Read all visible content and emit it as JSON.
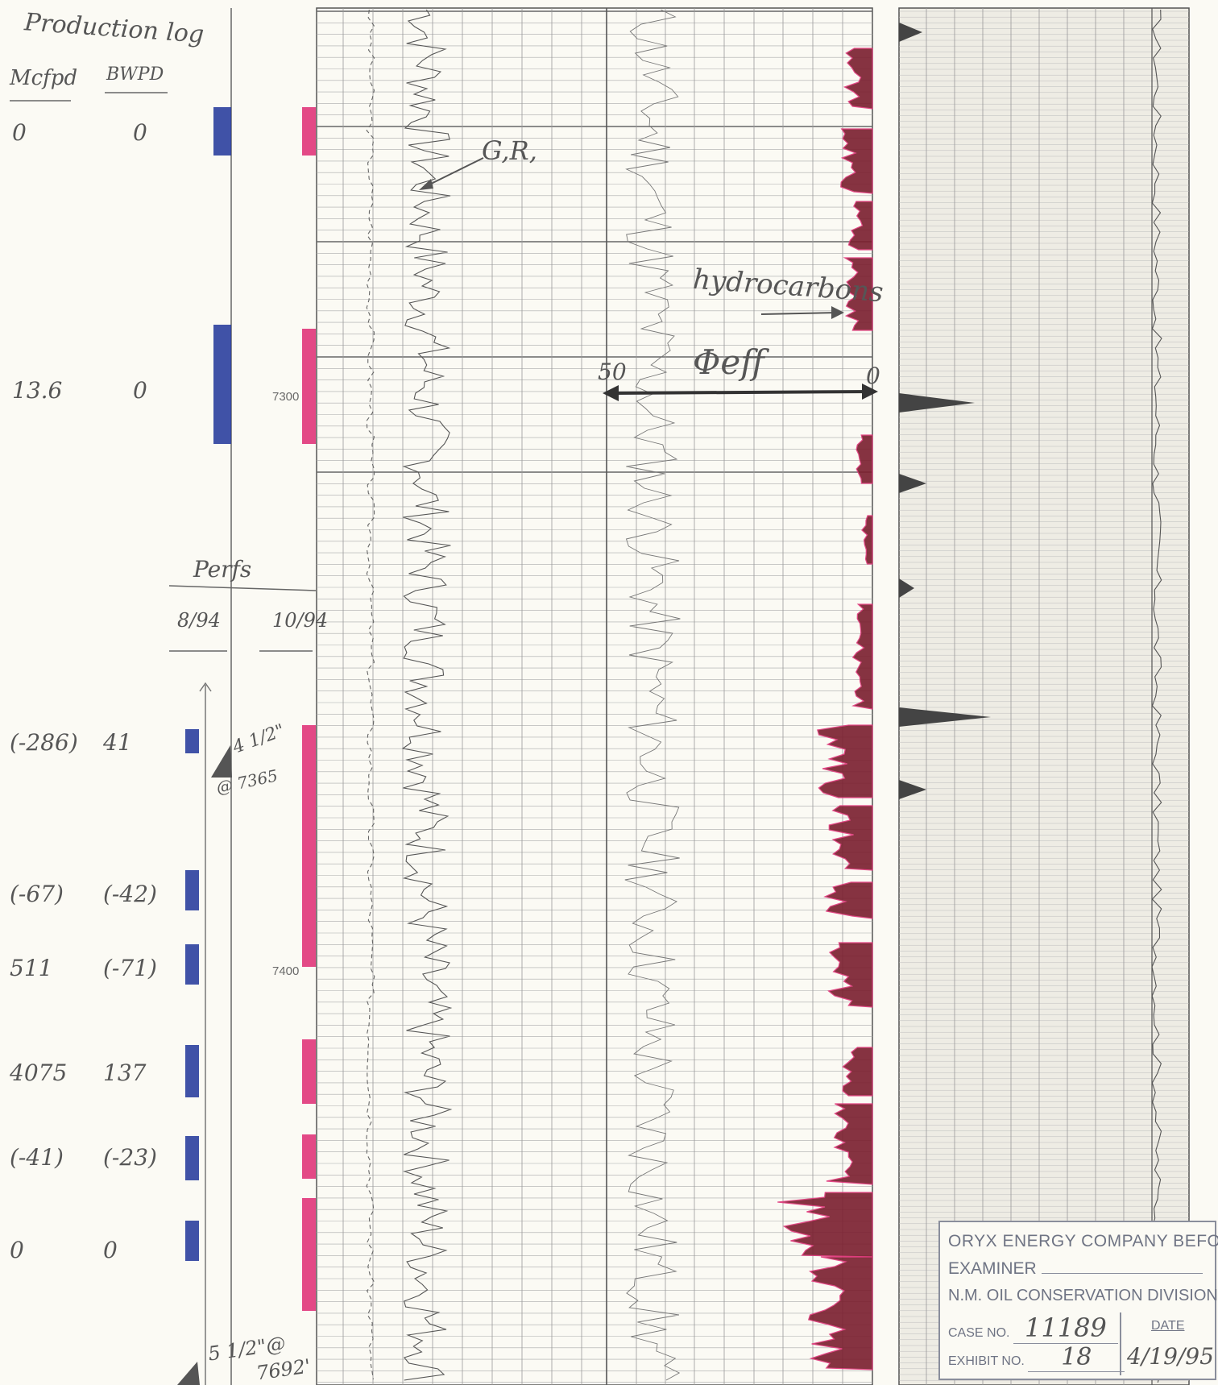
{
  "header": {
    "title": "Production log",
    "col_mcfpd": "Mcfpd",
    "col_bwpd": "BWPD"
  },
  "production_rows": [
    {
      "mcfpd": "0",
      "bwpd": "0"
    },
    {
      "mcfpd": "13.6",
      "bwpd": "0"
    },
    {
      "mcfpd": "(-286)",
      "bwpd": "41"
    },
    {
      "mcfpd": "(-67)",
      "bwpd": "(-42)"
    },
    {
      "mcfpd": "511",
      "bwpd": "(-71)"
    },
    {
      "mcfpd": "4075",
      "bwpd": "137"
    },
    {
      "mcfpd": "(-41)",
      "bwpd": "(-23)"
    },
    {
      "mcfpd": "0",
      "bwpd": "0"
    }
  ],
  "perfs": {
    "label": "Perfs",
    "date_1": "8/94",
    "date_2": "10/94"
  },
  "tubing": {
    "size": "4 1/2\"",
    "depth": "@ 7365"
  },
  "casing": {
    "size": "5 1/2\"@",
    "depth": "7692'"
  },
  "depth_marks": {
    "d1": "7300",
    "d2": "7400"
  },
  "annotations": {
    "gr": "G,R,",
    "hydrocarbons": "hydrocarbons",
    "phi_eff": "Φeff",
    "scale_left": "50",
    "scale_right": "0"
  },
  "stamp": {
    "line1": "ORYX ENERGY COMPANY BEFORE",
    "line2": "EXAMINER",
    "line3": "N.M. OIL CONSERVATION DIVISION",
    "case_label": "CASE NO.",
    "case_no": "11189",
    "exhibit_label": "EXHIBIT NO.",
    "exhibit_no": "18",
    "date_label": "DATE",
    "date_value": "4/19/95"
  },
  "colors": {
    "perf_magenta": "#e0357a",
    "perf_blue": "#2b3f9e",
    "fill_maroon": "#7a1e2e"
  }
}
